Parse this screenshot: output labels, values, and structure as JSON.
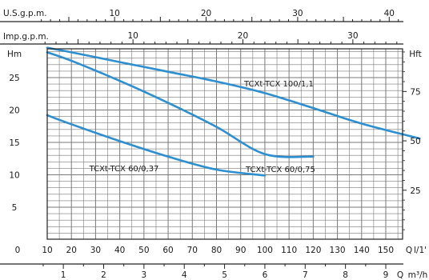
{
  "chart_data": {
    "type": "line",
    "title": "",
    "xlabel": "Q l/1'",
    "ylabel": "Hm",
    "ylabel_right": "Hft",
    "xlim": [
      0,
      164
    ],
    "ylim": [
      0,
      29.5
    ],
    "x_ticks": [
      10,
      20,
      30,
      40,
      50,
      60,
      70,
      80,
      90,
      100,
      110,
      120,
      130,
      140,
      150
    ],
    "x_origin_label": "0",
    "y_ticks": [
      5,
      10,
      15,
      20,
      25
    ],
    "y_ticks_right": [
      25,
      50,
      75
    ],
    "grid": true,
    "legend": "none",
    "axes_top": [
      {
        "label": "U.S.g.p.m.",
        "ticks": [
          10,
          20,
          30,
          40
        ]
      },
      {
        "label": "Imp.g.p.m.",
        "ticks": [
          10,
          20,
          30
        ]
      }
    ],
    "axis_bottom": {
      "label": "Q m³/h",
      "ticks": [
        1,
        2,
        3,
        4,
        5,
        6,
        7,
        8,
        9
      ]
    },
    "series": [
      {
        "name": "TCXt-TCX 100/1,1",
        "x": [
          10,
          20,
          40,
          60,
          80,
          100,
          120,
          140,
          164
        ],
        "y": [
          29.6,
          28.9,
          27.4,
          25.9,
          24.4,
          22.6,
          20.3,
          17.9,
          15.6
        ]
      },
      {
        "name": "TCXt-TCX 60/0,75",
        "x": [
          10,
          20,
          40,
          60,
          80,
          100,
          120
        ],
        "y": [
          28.9,
          27.6,
          24.5,
          21.1,
          17.4,
          13.2,
          12.8
        ]
      },
      {
        "name": "TCXt-TCX 60/0,37",
        "x": [
          10,
          20,
          40,
          60,
          80,
          100
        ],
        "y": [
          19.2,
          17.8,
          15.2,
          12.8,
          10.8,
          9.9
        ]
      }
    ],
    "line_color": "#2e8fd0"
  }
}
